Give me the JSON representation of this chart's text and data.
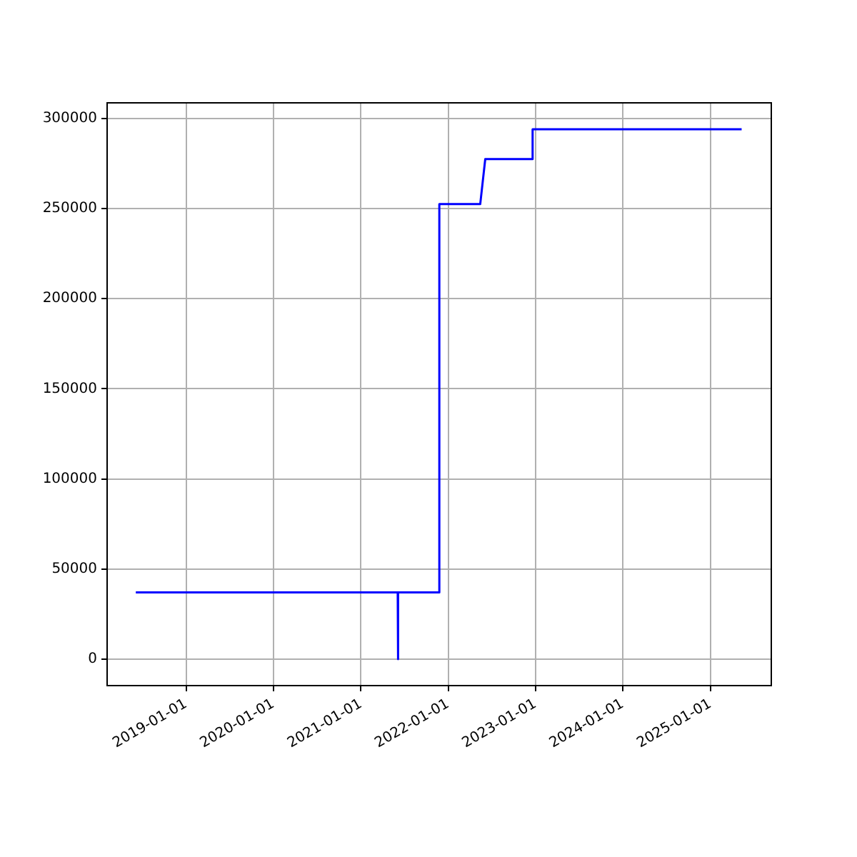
{
  "chart_data": {
    "type": "line",
    "x": [
      "2018-06-05",
      "2021-06-04",
      "2021-06-05",
      "2021-06-06",
      "2021-11-24",
      "2021-11-25",
      "2022-05-15",
      "2022-06-05",
      "2022-12-18",
      "2022-12-20",
      "2025-05-12"
    ],
    "series": [
      {
        "color": "#0000ff",
        "values": [
          37000,
          37000,
          0,
          37000,
          37000,
          252500,
          252500,
          277500,
          277500,
          294000,
          294000
        ]
      }
    ],
    "xlim": [
      "2018-02-05",
      "2025-09-13"
    ],
    "xticks": [
      "2019-01-01",
      "2020-01-01",
      "2021-01-01",
      "2022-01-01",
      "2023-01-01",
      "2024-01-01",
      "2025-01-01"
    ],
    "ylim": [
      -14700,
      308700
    ],
    "yticks": [
      0,
      50000,
      100000,
      150000,
      200000,
      250000,
      300000
    ],
    "grid": true
  }
}
